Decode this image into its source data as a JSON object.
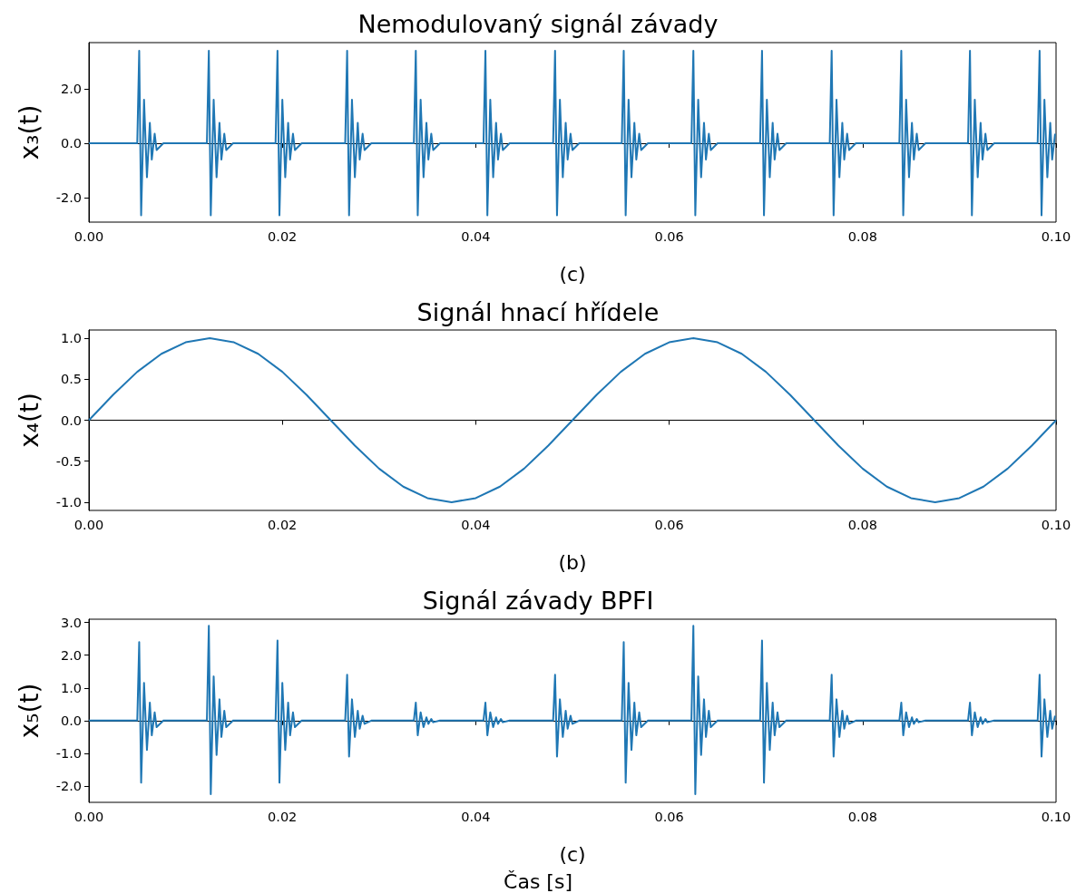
{
  "chart_data": [
    {
      "type": "line",
      "title": "Nemodulovaný signál závady",
      "xlabel": "(c)",
      "ylabel": "x₃(t)",
      "color": "#1f77b4",
      "marker": "none",
      "x": [
        0,
        0.005,
        0.0052,
        0.0054,
        0.0057,
        0.006,
        0.0063,
        0.0065,
        0.0068,
        0.007,
        0.0077,
        0.0122,
        0.0124,
        0.0126,
        0.0129,
        0.0132,
        0.0135,
        0.0137,
        0.014,
        0.0142,
        0.0149,
        0.0193,
        0.0195,
        0.0197,
        0.02,
        0.0203,
        0.0206,
        0.0208,
        0.0211,
        0.0213,
        0.022,
        0.0265,
        0.0267,
        0.0269,
        0.0272,
        0.0275,
        0.0278,
        0.028,
        0.0283,
        0.0285,
        0.0292,
        0.0336,
        0.0338,
        0.034,
        0.0343,
        0.0346,
        0.0349,
        0.0351,
        0.0354,
        0.0356,
        0.0363,
        0.0408,
        0.041,
        0.0412,
        0.0415,
        0.0418,
        0.0421,
        0.0423,
        0.0426,
        0.0428,
        0.0435,
        0.048,
        0.0482,
        0.0484,
        0.0487,
        0.049,
        0.0493,
        0.0495,
        0.0498,
        0.05,
        0.0507,
        0.0551,
        0.0553,
        0.0555,
        0.0558,
        0.0561,
        0.0564,
        0.0566,
        0.0569,
        0.0571,
        0.0578,
        0.0623,
        0.0625,
        0.0627,
        0.063,
        0.0633,
        0.0636,
        0.0638,
        0.0641,
        0.0643,
        0.065,
        0.0694,
        0.0696,
        0.0698,
        0.0701,
        0.0704,
        0.0707,
        0.0709,
        0.0712,
        0.0714,
        0.0721,
        0.0766,
        0.0768,
        0.077,
        0.0773,
        0.0776,
        0.0779,
        0.0781,
        0.0784,
        0.0786,
        0.0793,
        0.0838,
        0.084,
        0.0842,
        0.0845,
        0.0848,
        0.0851,
        0.0853,
        0.0856,
        0.0858,
        0.0865,
        0.0909,
        0.0911,
        0.0913,
        0.0916,
        0.0919,
        0.0922,
        0.0924,
        0.0927,
        0.0929,
        0.0936,
        0.0981,
        0.0983,
        0.0985,
        0.0988,
        0.0991,
        0.0994,
        0.0996,
        0.0999
      ],
      "values": [
        0,
        0,
        3.4,
        -2.65,
        1.6,
        -1.25,
        0.75,
        -0.6,
        0.35,
        -0.25,
        0,
        0,
        3.4,
        -2.65,
        1.6,
        -1.25,
        0.75,
        -0.6,
        0.35,
        -0.25,
        0,
        0,
        3.4,
        -2.65,
        1.6,
        -1.25,
        0.75,
        -0.6,
        0.35,
        -0.25,
        0,
        0,
        3.4,
        -2.65,
        1.6,
        -1.25,
        0.75,
        -0.6,
        0.35,
        -0.25,
        0,
        0,
        3.4,
        -2.65,
        1.6,
        -1.25,
        0.75,
        -0.6,
        0.35,
        -0.25,
        0,
        0,
        3.4,
        -2.65,
        1.6,
        -1.25,
        0.75,
        -0.6,
        0.35,
        -0.25,
        0,
        0,
        3.4,
        -2.65,
        1.6,
        -1.25,
        0.75,
        -0.6,
        0.35,
        -0.25,
        0,
        0,
        3.4,
        -2.65,
        1.6,
        -1.25,
        0.75,
        -0.6,
        0.35,
        -0.25,
        0,
        0,
        3.4,
        -2.65,
        1.6,
        -1.25,
        0.75,
        -0.6,
        0.35,
        -0.25,
        0,
        0,
        3.4,
        -2.65,
        1.6,
        -1.25,
        0.75,
        -0.6,
        0.35,
        -0.25,
        0,
        0,
        3.4,
        -2.65,
        1.6,
        -1.25,
        0.75,
        -0.6,
        0.35,
        -0.25,
        0,
        0,
        3.4,
        -2.65,
        1.6,
        -1.25,
        0.75,
        -0.6,
        0.35,
        -0.25,
        0,
        0,
        3.4,
        -2.65,
        1.6,
        -1.25,
        0.75,
        -0.6,
        0.35,
        -0.25,
        0,
        0,
        3.4,
        -2.65,
        1.6,
        -1.25,
        0.75,
        -0.6,
        0.35
      ],
      "xlim": [
        0,
        0.1
      ],
      "xticks": [
        {
          "value": 0,
          "label": "0.00"
        },
        {
          "value": 0.02,
          "label": "0.02"
        },
        {
          "value": 0.04,
          "label": "0.04"
        },
        {
          "value": 0.06,
          "label": "0.06"
        },
        {
          "value": 0.08,
          "label": "0.08"
        },
        {
          "value": 0.1,
          "label": "0.10"
        }
      ],
      "ylim": [
        -2.9,
        3.7
      ],
      "yticks": [
        {
          "value": -2,
          "label": "-2.0"
        },
        {
          "value": 0,
          "label": "0.0"
        },
        {
          "value": 2,
          "label": "2.0"
        }
      ]
    },
    {
      "type": "line",
      "title": "Signál hnací hřídele",
      "xlabel": "(b)",
      "ylabel": "x₄(t)",
      "color": "#1f77b4",
      "marker": "none",
      "x": [
        0,
        0.0025,
        0.005,
        0.0075,
        0.01,
        0.0125,
        0.015,
        0.0175,
        0.02,
        0.0225,
        0.025,
        0.0275,
        0.03,
        0.0325,
        0.035,
        0.0375,
        0.04,
        0.0425,
        0.045,
        0.0475,
        0.05,
        0.0525,
        0.055,
        0.0575,
        0.06,
        0.0625,
        0.065,
        0.0675,
        0.07,
        0.0725,
        0.075,
        0.0775,
        0.08,
        0.0825,
        0.085,
        0.0875,
        0.09,
        0.0925,
        0.095,
        0.0975,
        0.1
      ],
      "values": [
        0,
        0.31,
        0.59,
        0.81,
        0.95,
        1,
        0.95,
        0.81,
        0.59,
        0.31,
        0,
        -0.31,
        -0.59,
        -0.81,
        -0.95,
        -1,
        -0.95,
        -0.81,
        -0.59,
        -0.31,
        0,
        0.31,
        0.59,
        0.81,
        0.95,
        1,
        0.95,
        0.81,
        0.59,
        0.31,
        0,
        -0.31,
        -0.59,
        -0.81,
        -0.95,
        -1,
        -0.95,
        -0.81,
        -0.59,
        -0.31,
        0
      ],
      "xlim": [
        0,
        0.1
      ],
      "xticks": [
        {
          "value": 0,
          "label": "0.00"
        },
        {
          "value": 0.02,
          "label": "0.02"
        },
        {
          "value": 0.04,
          "label": "0.04"
        },
        {
          "value": 0.06,
          "label": "0.06"
        },
        {
          "value": 0.08,
          "label": "0.08"
        },
        {
          "value": 0.1,
          "label": "0.10"
        }
      ],
      "ylim": [
        -1.1,
        1.1
      ],
      "yticks": [
        {
          "value": -1,
          "label": "-1.0"
        },
        -0.5,
        {
          "value": 0,
          "label": "0.0"
        },
        0.5,
        {
          "value": 1,
          "label": "1.0"
        }
      ]
    },
    {
      "type": "line",
      "title": "Signál závady BPFI",
      "xlabel": "(c)",
      "ylabel": "x₅(t)",
      "color": "#1f77b4",
      "marker": "none",
      "annotations": [
        "Čas [s]"
      ],
      "x": [
        0,
        0.005,
        0.0052,
        0.0054,
        0.0057,
        0.006,
        0.0063,
        0.0065,
        0.0068,
        0.007,
        0.0077,
        0.0122,
        0.0124,
        0.0126,
        0.0129,
        0.0132,
        0.0135,
        0.0137,
        0.014,
        0.0142,
        0.0149,
        0.0193,
        0.0195,
        0.0197,
        0.02,
        0.0203,
        0.0206,
        0.0208,
        0.0211,
        0.0213,
        0.022,
        0.0265,
        0.0267,
        0.0269,
        0.0272,
        0.0275,
        0.0278,
        0.028,
        0.0283,
        0.0285,
        0.0292,
        0.0336,
        0.0338,
        0.034,
        0.0343,
        0.0346,
        0.0349,
        0.0351,
        0.0354,
        0.0356,
        0.0363,
        0.0408,
        0.041,
        0.0412,
        0.0415,
        0.0418,
        0.0421,
        0.0423,
        0.0426,
        0.0428,
        0.0435,
        0.048,
        0.0482,
        0.0484,
        0.0487,
        0.049,
        0.0493,
        0.0495,
        0.0498,
        0.05,
        0.0507,
        0.0551,
        0.0553,
        0.0555,
        0.0558,
        0.0561,
        0.0564,
        0.0566,
        0.0569,
        0.0571,
        0.0578,
        0.0623,
        0.0625,
        0.0627,
        0.063,
        0.0633,
        0.0636,
        0.0638,
        0.0641,
        0.0643,
        0.065,
        0.0694,
        0.0696,
        0.0698,
        0.0701,
        0.0704,
        0.0707,
        0.0709,
        0.0712,
        0.0714,
        0.0721,
        0.0766,
        0.0768,
        0.077,
        0.0773,
        0.0776,
        0.0779,
        0.0781,
        0.0784,
        0.0786,
        0.0793,
        0.0838,
        0.084,
        0.0842,
        0.0845,
        0.0848,
        0.0851,
        0.0853,
        0.0856,
        0.0858,
        0.0865,
        0.0909,
        0.0911,
        0.0913,
        0.0916,
        0.0919,
        0.0922,
        0.0924,
        0.0927,
        0.0929,
        0.0936,
        0.0981,
        0.0983,
        0.0985,
        0.0988,
        0.0991,
        0.0994,
        0.0996,
        0.0999
      ],
      "values": [
        0,
        0,
        2.4,
        -1.9,
        1.15,
        -0.9,
        0.55,
        -0.45,
        0.25,
        -0.2,
        0,
        0,
        2.9,
        -2.25,
        1.35,
        -1.05,
        0.65,
        -0.5,
        0.3,
        -0.2,
        0,
        0,
        2.45,
        -1.9,
        1.15,
        -0.9,
        0.55,
        -0.45,
        0.25,
        -0.2,
        0,
        0,
        1.4,
        -1.1,
        0.65,
        -0.5,
        0.3,
        -0.25,
        0.15,
        -0.1,
        0,
        0,
        0.55,
        -0.45,
        0.25,
        -0.2,
        0.1,
        -0.1,
        0.05,
        -0.05,
        0,
        0,
        0.55,
        -0.45,
        0.25,
        -0.2,
        0.1,
        -0.1,
        0.05,
        -0.05,
        0,
        0,
        1.4,
        -1.1,
        0.65,
        -0.5,
        0.3,
        -0.25,
        0.15,
        -0.1,
        0,
        0,
        2.4,
        -1.9,
        1.15,
        -0.9,
        0.55,
        -0.45,
        0.25,
        -0.2,
        0,
        0,
        2.9,
        -2.25,
        1.35,
        -1.05,
        0.65,
        -0.5,
        0.3,
        -0.2,
        0,
        0,
        2.45,
        -1.9,
        1.15,
        -0.9,
        0.55,
        -0.45,
        0.25,
        -0.2,
        0,
        0,
        1.4,
        -1.1,
        0.65,
        -0.5,
        0.3,
        -0.25,
        0.15,
        -0.1,
        0,
        0,
        0.55,
        -0.45,
        0.25,
        -0.2,
        0.1,
        -0.1,
        0.05,
        -0.05,
        0,
        0,
        0.55,
        -0.45,
        0.25,
        -0.2,
        0.1,
        -0.1,
        0.05,
        -0.05,
        0,
        0,
        1.4,
        -1.1,
        0.65,
        -0.5,
        0.3,
        -0.25,
        0.15
      ],
      "xlim": [
        0,
        0.1
      ],
      "xticks": [
        {
          "value": 0,
          "label": "0.00"
        },
        {
          "value": 0.02,
          "label": "0.02"
        },
        {
          "value": 0.04,
          "label": "0.04"
        },
        {
          "value": 0.06,
          "label": "0.06"
        },
        {
          "value": 0.08,
          "label": "0.08"
        },
        {
          "value": 0.1,
          "label": "0.10"
        }
      ],
      "ylim": [
        -2.5,
        3.1
      ],
      "yticks": [
        {
          "value": -2,
          "label": "-2.0"
        },
        {
          "value": -1,
          "label": "-1.0"
        },
        {
          "value": 0,
          "label": "0.0"
        },
        {
          "value": 1,
          "label": "1.0"
        },
        {
          "value": 2,
          "label": "2.0"
        },
        {
          "value": 3,
          "label": "3.0"
        }
      ]
    }
  ]
}
